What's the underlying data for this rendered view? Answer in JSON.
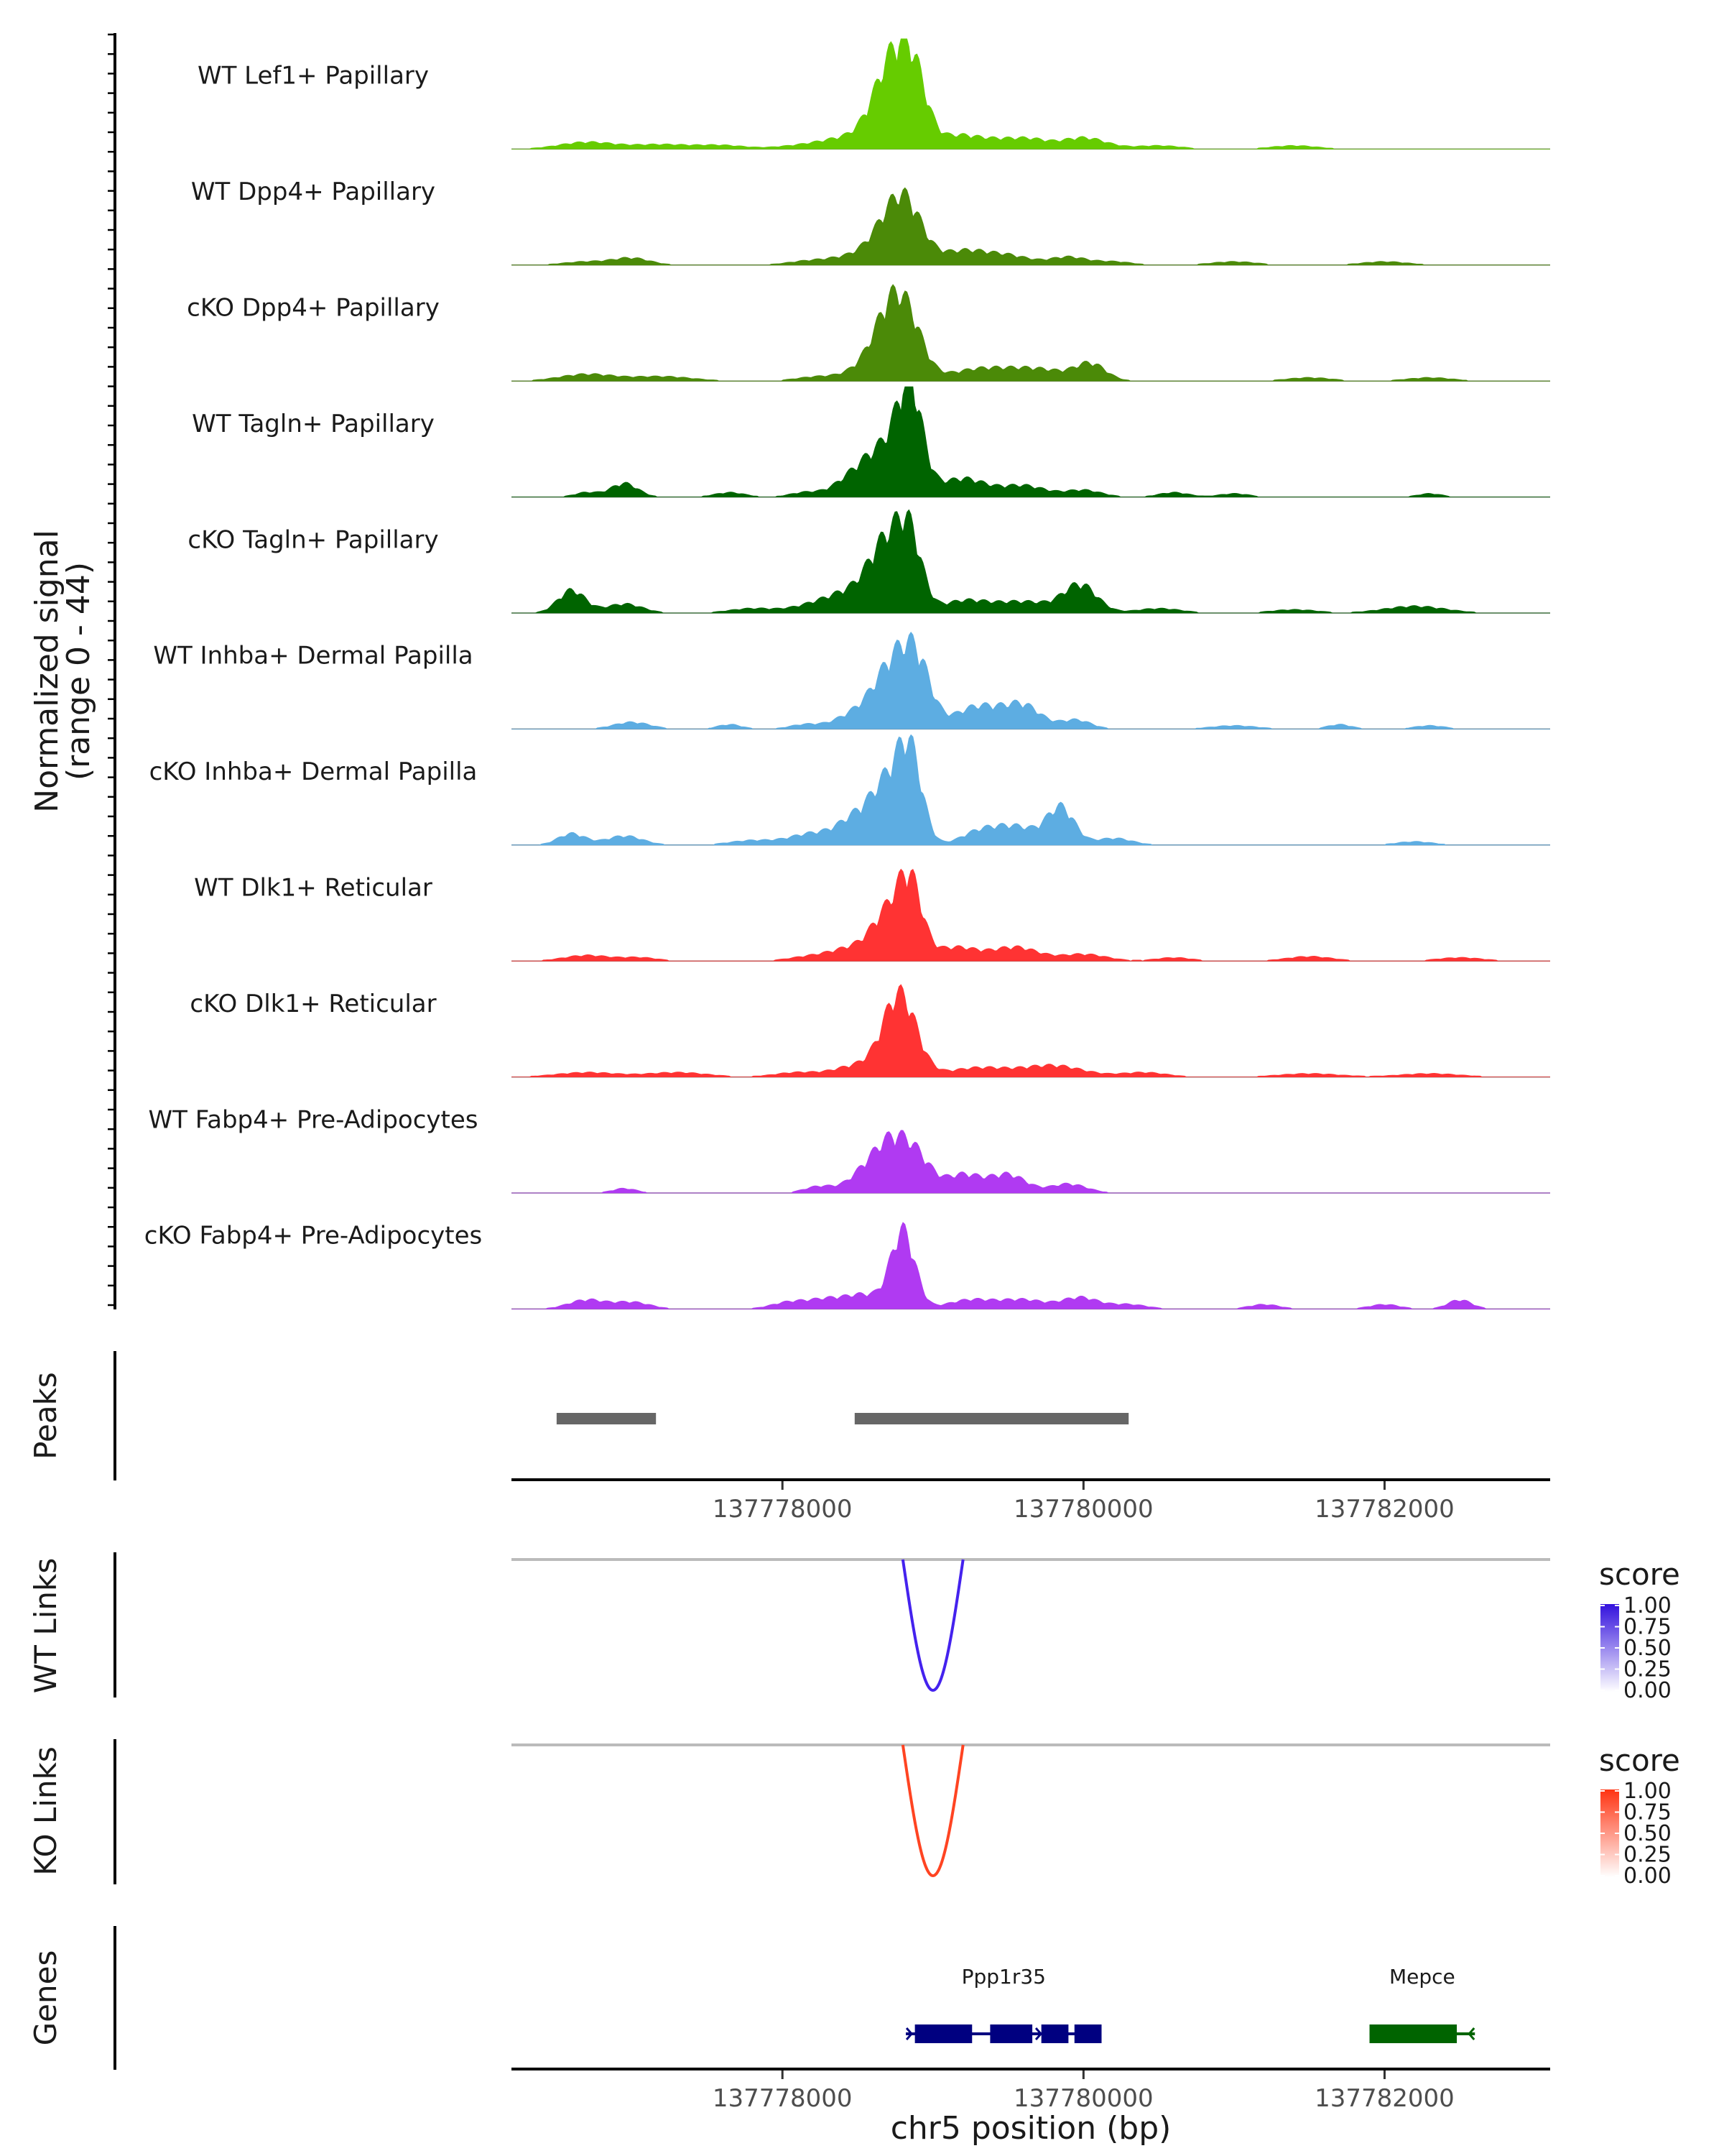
{
  "chart_data": {
    "type": "area",
    "region": {
      "chrom": "chr5",
      "start": 137776200,
      "end": 137783100
    },
    "signal_panel": {
      "ylabel_line1": "Normalized signal",
      "ylabel_line2": "(range 0 - 44)",
      "ylim": [
        0,
        44
      ],
      "tracks": [
        {
          "name": "WT Lef1+ Papillary",
          "color": "#66CC00",
          "peaks": [
            [
              137776700,
              3,
              180
            ],
            [
              137777200,
              2,
              200
            ],
            [
              137777600,
              1.5,
              150
            ],
            [
              137778200,
              2,
              200
            ],
            [
              137778450,
              4,
              150
            ],
            [
              137778620,
              8,
              100
            ],
            [
              137778750,
              34,
              110
            ],
            [
              137778880,
              24,
              90
            ],
            [
              137779150,
              5,
              120
            ],
            [
              137779400,
              4,
              150
            ],
            [
              137779650,
              3.5,
              120
            ],
            [
              137780000,
              5,
              150
            ],
            [
              137780500,
              1.5,
              150
            ],
            [
              137781400,
              1.5,
              150
            ]
          ]
        },
        {
          "name": "WT Dpp4+ Papillary",
          "color": "#4B8A08",
          "peaks": [
            [
              137776700,
              1.5,
              150
            ],
            [
              137777000,
              3,
              120
            ],
            [
              137778200,
              2,
              150
            ],
            [
              137778450,
              3,
              120
            ],
            [
              137778620,
              6,
              100
            ],
            [
              137778800,
              30,
              120
            ],
            [
              137779200,
              6,
              150
            ],
            [
              137779500,
              4,
              150
            ],
            [
              137779900,
              3.5,
              120
            ],
            [
              137780200,
              1.5,
              120
            ],
            [
              137781000,
              1.5,
              150
            ],
            [
              137782000,
              1.5,
              150
            ]
          ]
        },
        {
          "name": "cKO Dpp4+ Papillary",
          "color": "#4B8A08",
          "peaks": [
            [
              137776700,
              3,
              180
            ],
            [
              137777200,
              2,
              200
            ],
            [
              137778250,
              2,
              150
            ],
            [
              137778550,
              5,
              120
            ],
            [
              137778720,
              28,
              110
            ],
            [
              137778850,
              18,
              100
            ],
            [
              137779300,
              5,
              200
            ],
            [
              137779700,
              5,
              200
            ],
            [
              137780050,
              7,
              100
            ],
            [
              137781500,
              1.5,
              150
            ],
            [
              137782300,
              1.5,
              150
            ]
          ]
        },
        {
          "name": "WT Tagln+ Papillary",
          "color": "#006400",
          "peaks": [
            [
              137776700,
              2,
              80
            ],
            [
              137776950,
              6,
              90
            ],
            [
              137777650,
              2,
              100
            ],
            [
              137778150,
              2,
              100
            ],
            [
              137778450,
              6,
              120
            ],
            [
              137778700,
              22,
              150
            ],
            [
              137778850,
              38,
              80
            ],
            [
              137779200,
              8,
              150
            ],
            [
              137779600,
              5,
              150
            ],
            [
              137780000,
              3,
              120
            ],
            [
              137780600,
              2,
              100
            ],
            [
              137781000,
              1.5,
              100
            ],
            [
              137782300,
              1.5,
              80
            ]
          ]
        },
        {
          "name": "cKO Tagln+ Papillary",
          "color": "#006400",
          "peaks": [
            [
              137776600,
              10,
              90
            ],
            [
              137776950,
              4,
              120
            ],
            [
              137777800,
              2,
              150
            ],
            [
              137778200,
              3,
              150
            ],
            [
              137778450,
              8,
              150
            ],
            [
              137778700,
              30,
              120
            ],
            [
              137778850,
              26,
              80
            ],
            [
              137779200,
              5,
              150
            ],
            [
              137779600,
              5,
              200
            ],
            [
              137779980,
              12,
              110
            ],
            [
              137780500,
              2,
              150
            ],
            [
              137781400,
              1.5,
              150
            ],
            [
              137782200,
              3,
              200
            ]
          ]
        },
        {
          "name": "WT Inhba+ Dermal Papilla",
          "color": "#5DADE2",
          "peaks": [
            [
              137777000,
              3,
              120
            ],
            [
              137777650,
              2,
              80
            ],
            [
              137778150,
              2,
              100
            ],
            [
              137778450,
              5,
              120
            ],
            [
              137778750,
              30,
              140
            ],
            [
              137778900,
              18,
              90
            ],
            [
              137779300,
              10,
              150
            ],
            [
              137779600,
              10,
              120
            ],
            [
              137779950,
              4,
              100
            ],
            [
              137781000,
              1.5,
              150
            ],
            [
              137781700,
              2,
              80
            ],
            [
              137782300,
              1.5,
              100
            ]
          ]
        },
        {
          "name": "cKO Inhba+ Dermal Papilla",
          "color": "#5DADE2",
          "peaks": [
            [
              137776600,
              5,
              90
            ],
            [
              137776950,
              4,
              120
            ],
            [
              137777800,
              2,
              150
            ],
            [
              137778200,
              5,
              150
            ],
            [
              137778500,
              12,
              120
            ],
            [
              137778700,
              24,
              100
            ],
            [
              137778850,
              38,
              80
            ],
            [
              137779300,
              5,
              120
            ],
            [
              137779550,
              8,
              150
            ],
            [
              137779850,
              16,
              90
            ],
            [
              137780200,
              3,
              120
            ],
            [
              137782200,
              1.5,
              120
            ]
          ]
        },
        {
          "name": "WT Dlk1+ Reticular",
          "color": "#FF3333",
          "peaks": [
            [
              137776700,
              2.5,
              150
            ],
            [
              137777050,
              1.5,
              120
            ],
            [
              137778200,
              2,
              150
            ],
            [
              137778500,
              6,
              150
            ],
            [
              137778700,
              18,
              100
            ],
            [
              137778850,
              32,
              80
            ],
            [
              137779150,
              6,
              150
            ],
            [
              137779550,
              6,
              150
            ],
            [
              137780000,
              3,
              150
            ],
            [
              137780600,
              1.5,
              120
            ],
            [
              137781500,
              2,
              150
            ],
            [
              137782500,
              1.5,
              150
            ]
          ]
        },
        {
          "name": "cKO Dlk1+ Reticular",
          "color": "#FF3333",
          "peaks": [
            [
              137776700,
              2,
              200
            ],
            [
              137777300,
              2,
              200
            ],
            [
              137778100,
              2,
              150
            ],
            [
              137778500,
              5,
              150
            ],
            [
              137778780,
              36,
              110
            ],
            [
              137779300,
              4,
              200
            ],
            [
              137779800,
              5,
              200
            ],
            [
              137780400,
              2,
              150
            ],
            [
              137781500,
              1.5,
              200
            ],
            [
              137782300,
              1.5,
              200
            ]
          ]
        },
        {
          "name": "WT Fabp4+ Pre-Adipocytes",
          "color": "#B03AF2",
          "peaks": [
            [
              137776950,
              2,
              80
            ],
            [
              137778250,
              3,
              100
            ],
            [
              137778520,
              6,
              100
            ],
            [
              137778720,
              22,
              120
            ],
            [
              137778900,
              12,
              100
            ],
            [
              137779200,
              8,
              120
            ],
            [
              137779500,
              8,
              120
            ],
            [
              137779900,
              4,
              120
            ]
          ]
        },
        {
          "name": "cKO Fabp4+ Pre-Adipocytes",
          "color": "#B03AF2",
          "peaks": [
            [
              137776700,
              4,
              120
            ],
            [
              137777000,
              3,
              120
            ],
            [
              137778050,
              3,
              120
            ],
            [
              137778300,
              4,
              120
            ],
            [
              137778550,
              6,
              120
            ],
            [
              137778800,
              34,
              80
            ],
            [
              137779250,
              4,
              150
            ],
            [
              137779600,
              4,
              150
            ],
            [
              137779980,
              5,
              120
            ],
            [
              137780300,
              2,
              120
            ],
            [
              137781200,
              2,
              100
            ],
            [
              137782000,
              2,
              100
            ],
            [
              137782500,
              4,
              80
            ]
          ]
        }
      ]
    },
    "peaks_panel": {
      "title": "Peaks",
      "ranges": [
        [
          137776500,
          137777160
        ],
        [
          137778480,
          137780300
        ]
      ]
    },
    "x_axis": {
      "ticks": [
        137778000,
        137780000,
        137782000
      ],
      "tick_labels": [
        "137778000",
        "137780000",
        "137782000"
      ],
      "xlabel": "chr5 position (bp)"
    },
    "links": [
      {
        "title": "WT Links",
        "legend_title": "score",
        "color": "#4422EE",
        "legend_color": "#3311DD",
        "from": 137778800,
        "to": 137779200,
        "score": 1.0,
        "legend_ticks": [
          "1.00",
          "0.75",
          "0.50",
          "0.25",
          "0.00"
        ]
      },
      {
        "title": "KO Links",
        "legend_title": "score",
        "color": "#FF4422",
        "legend_color": "#FF3311",
        "from": 137778800,
        "to": 137779200,
        "score": 1.0,
        "legend_ticks": [
          "1.00",
          "0.75",
          "0.50",
          "0.25",
          "0.00"
        ]
      }
    ],
    "genes_panel": {
      "title": "Genes",
      "genes": [
        {
          "name": "Ppp1r35",
          "color": "#000080",
          "strand": "+",
          "start": 137778820,
          "end": 137780120,
          "exons": [
            [
              137778880,
              137779260
            ],
            [
              137779380,
              137779660
            ],
            [
              137779720,
              137779900
            ],
            [
              137779940,
              137780120
            ]
          ]
        },
        {
          "name": "Mepce",
          "color": "#006400",
          "strand": "-",
          "start": 137781900,
          "end": 137782600,
          "exons": [
            [
              137781900,
              137782480
            ]
          ]
        }
      ]
    }
  }
}
